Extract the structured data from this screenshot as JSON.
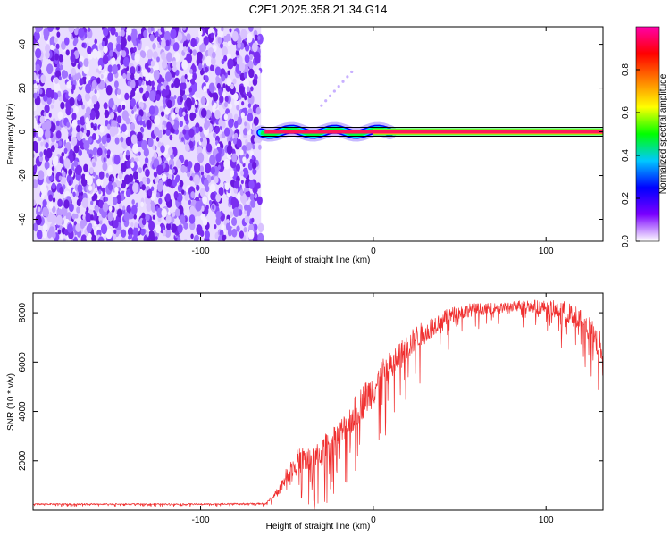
{
  "title": "C2E1.2025.358.21.34.G14",
  "chart_data": [
    {
      "type": "heatmap",
      "title": "C2E1.2025.358.21.34.G14",
      "xlabel": "Height of straight line (km)",
      "ylabel": "Frequency (Hz)",
      "xlim": [
        -197,
        133
      ],
      "ylim": [
        -50,
        48
      ],
      "xticks": [
        -100,
        0,
        100
      ],
      "xtick_labels": [
        "-100",
        "0",
        "100"
      ],
      "yticks": [
        -40,
        -20,
        0,
        20,
        40
      ],
      "ytick_labels": [
        "-40",
        "-20",
        "0",
        "20",
        "40"
      ],
      "noise_region_x": [
        -197,
        -65
      ],
      "signal_band": {
        "x_start": -65,
        "x_end": 133,
        "frequency_hz": 0
      },
      "grid": false,
      "colorbar": {
        "label": "Normalized spectral amplitude",
        "range": [
          0,
          1
        ],
        "ticks": [
          0.0,
          0.2,
          0.4,
          0.6,
          0.8
        ],
        "tick_labels": [
          "0.0",
          "0.2",
          "0.4",
          "0.6",
          "0.8"
        ],
        "colors": [
          "#ffffff",
          "#7a00ff",
          "#0000ff",
          "#00c8ff",
          "#00ff00",
          "#ffff00",
          "#ff8000",
          "#ff0000",
          "#ff00aa"
        ]
      }
    },
    {
      "type": "line",
      "xlabel": "Height of straight line (km)",
      "ylabel": "SNR (10 * v/v)",
      "xlim": [
        -197,
        133
      ],
      "ylim": [
        0,
        8800
      ],
      "xticks": [
        -100,
        0,
        100
      ],
      "xtick_labels": [
        "-100",
        "0",
        "100"
      ],
      "yticks": [
        2000,
        4000,
        6000,
        8000
      ],
      "ytick_labels": [
        "2000",
        "4000",
        "6000",
        "8000"
      ],
      "grid": false,
      "color": "#f03030",
      "series": [
        {
          "name": "SNR",
          "x": [
            -197,
            -150,
            -100,
            -62,
            -55,
            -50,
            -45,
            -40,
            -35,
            -30,
            -25,
            -20,
            -15,
            -10,
            -5,
            0,
            5,
            10,
            15,
            20,
            25,
            30,
            35,
            40,
            45,
            50,
            55,
            60,
            65,
            70,
            75,
            80,
            85,
            90,
            95,
            100,
            105,
            110,
            115,
            120,
            125,
            130,
            133
          ],
          "values": [
            250,
            250,
            250,
            270,
            800,
            1400,
            1900,
            2100,
            1900,
            2300,
            2700,
            3000,
            3400,
            4000,
            4500,
            4900,
            5400,
            5800,
            6200,
            6600,
            7000,
            7200,
            7500,
            7700,
            7900,
            8000,
            8100,
            8150,
            8150,
            8200,
            8200,
            8250,
            8300,
            8300,
            8250,
            8200,
            8150,
            8100,
            7900,
            7700,
            7300,
            6800,
            6500
          ],
          "amplitude": [
            60,
            60,
            60,
            60,
            350,
            700,
            1000,
            1100,
            1200,
            1200,
            1300,
            1300,
            1400,
            1400,
            1400,
            1400,
            1400,
            1300,
            1200,
            1100,
            1000,
            900,
            800,
            700,
            650,
            600,
            550,
            500,
            450,
            400,
            400,
            400,
            450,
            500,
            550,
            600,
            700,
            800,
            900,
            1000,
            1100,
            1200,
            1200
          ]
        }
      ]
    }
  ]
}
